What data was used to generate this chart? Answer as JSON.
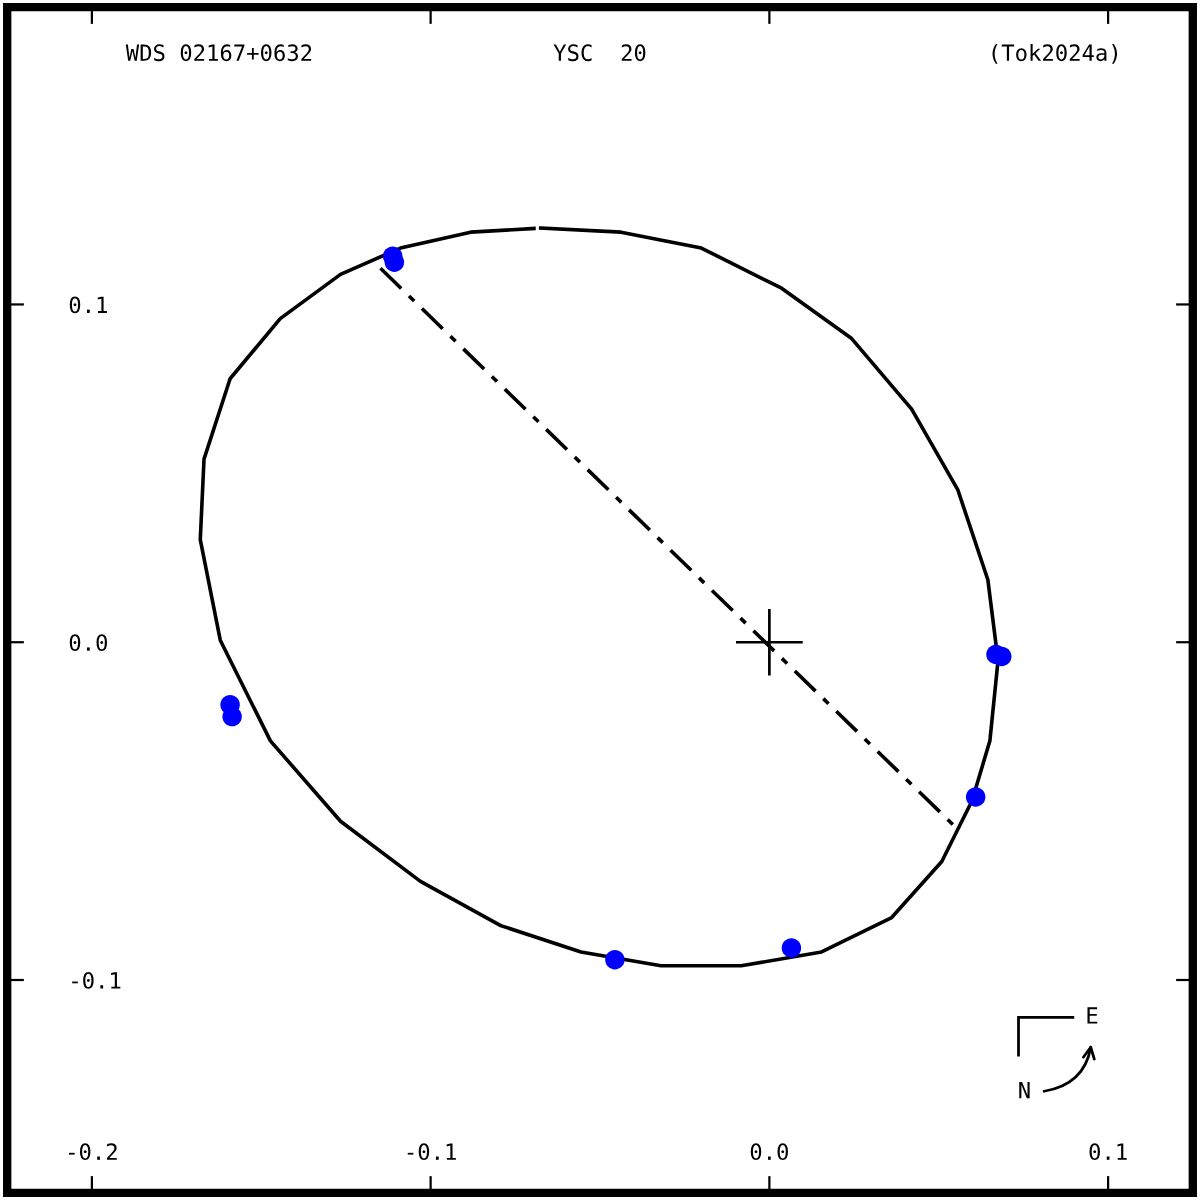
{
  "chart_data": {
    "type": "scatter",
    "title": "YSC  20",
    "annotations": [
      "WDS 02167+0632",
      "(Tok2024a)",
      "E",
      "N"
    ],
    "xlim": [
      -0.225,
      0.125
    ],
    "ylim": [
      -0.163,
      0.188
    ],
    "xticks": [
      -0.2,
      -0.1,
      {
        "value": 0.0,
        "label": "0.0"
      },
      0.1
    ],
    "yticks": [
      -0.1,
      {
        "value": 0.0,
        "label": "0.0"
      },
      0.1
    ],
    "grid": false,
    "legend": false,
    "series": [
      {
        "type": "line",
        "color": "#000000",
        "line_style": "solid",
        "marker": "none",
        "x": [
          -0.0675,
          -0.0438,
          -0.0201,
          0.0036,
          0.0243,
          0.042,
          0.0556,
          0.0645,
          0.0675,
          0.0651,
          0.0598,
          0.0509,
          0.0361,
          0.0154,
          -0.0083,
          -0.032,
          -0.0556,
          -0.0793,
          -0.103,
          -0.1266,
          -0.1473,
          -0.1621,
          -0.168,
          -0.1669,
          -0.1592,
          -0.1444,
          -0.1266,
          -0.1089,
          -0.0882,
          -0.0695
        ],
        "values": [
          0.1226,
          0.1214,
          0.1167,
          0.1048,
          0.0899,
          0.069,
          0.0452,
          0.0185,
          -0.0054,
          -0.0292,
          -0.047,
          -0.0649,
          -0.0815,
          -0.0917,
          -0.0958,
          -0.0958,
          -0.0917,
          -0.0839,
          -0.0708,
          -0.053,
          -0.0292,
          0.0006,
          0.0304,
          0.0542,
          0.078,
          0.0958,
          0.1089,
          0.1167,
          0.1214,
          0.1225
        ]
      },
      {
        "type": "line",
        "color": "#000000",
        "line_style": "dashed",
        "marker": "none",
        "x": [
          -0.1148,
          0.0544
        ],
        "values": [
          0.1107,
          -0.0542
        ]
      },
      {
        "color": "#0000ff",
        "marker": "circle",
        "x": [
          -0.1112,
          -0.1107,
          -0.1592,
          -0.1586,
          -0.0456,
          0.0065,
          0.0609,
          0.0669,
          0.0686
        ],
        "values": [
          0.1143,
          0.1125,
          -0.0185,
          -0.022,
          -0.094,
          -0.0905,
          -0.0458,
          -0.0036,
          -0.0042
        ]
      },
      {
        "type": "scatter",
        "color": "#000000",
        "marker": "cross",
        "x": [
          0.0
        ],
        "values": [
          0.0
        ]
      }
    ]
  }
}
